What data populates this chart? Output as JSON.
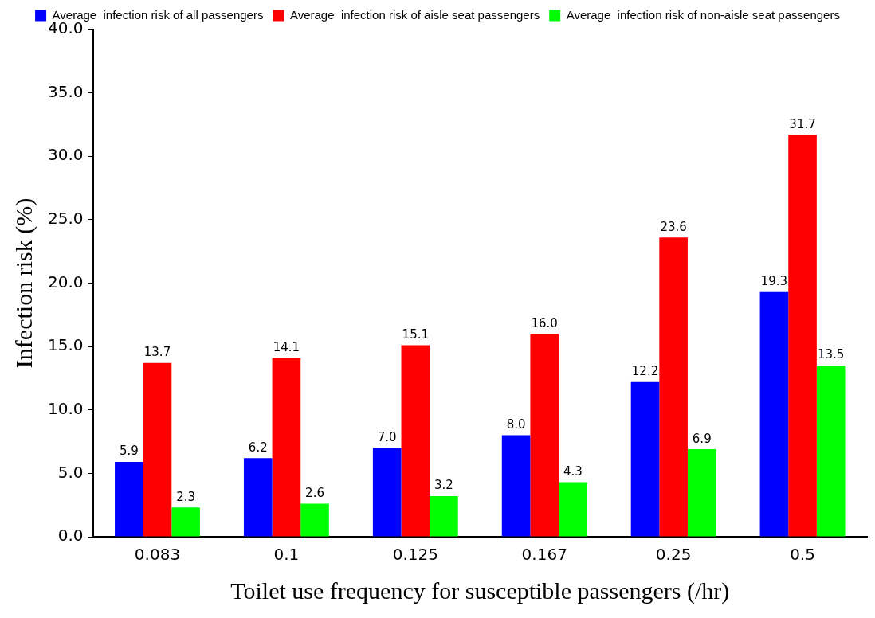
{
  "chart_data": {
    "type": "bar",
    "xlabel": "Toilet use frequency for susceptible passengers (/hr)",
    "ylabel": "Infection risk (%)",
    "categories": [
      "0.083",
      "0.1",
      "0.125",
      "0.167",
      "0.25",
      "0.5"
    ],
    "series": [
      {
        "name": "Average  infection risk of all passengers",
        "color": "#0000ff",
        "values": [
          5.9,
          6.2,
          7.0,
          8.0,
          12.2,
          19.3
        ],
        "value_labels": [
          "5.9",
          "6.2",
          "7.0",
          "8.0",
          "12.2",
          "19.3"
        ]
      },
      {
        "name": "Average  infection risk of aisle seat passengers",
        "color": "#ff0000",
        "values": [
          13.7,
          14.1,
          15.1,
          16.0,
          23.6,
          31.7
        ],
        "value_labels": [
          "13.7",
          "14.1",
          "15.1",
          "16.0",
          "23.6",
          "31.7"
        ]
      },
      {
        "name": "Average  infection risk of non-aisle seat passengers",
        "color": "#00ff00",
        "values": [
          2.3,
          2.6,
          3.2,
          4.3,
          6.9,
          13.5
        ],
        "value_labels": [
          "2.3",
          "2.6",
          "3.2",
          "4.3",
          "6.9",
          "13.5"
        ]
      }
    ],
    "ylim": [
      0,
      40
    ],
    "yticks": [
      {
        "value": 0,
        "label": "0.0"
      },
      {
        "value": 5,
        "label": "5.0"
      },
      {
        "value": 10,
        "label": "10.0"
      },
      {
        "value": 15,
        "label": "15.0"
      },
      {
        "value": 20,
        "label": "20.0"
      },
      {
        "value": 25,
        "label": "25.0"
      },
      {
        "value": 30,
        "label": "30.0"
      },
      {
        "value": 35,
        "label": "35.0"
      },
      {
        "value": 40,
        "label": "40.0"
      }
    ],
    "grid": false,
    "legend": "top"
  }
}
